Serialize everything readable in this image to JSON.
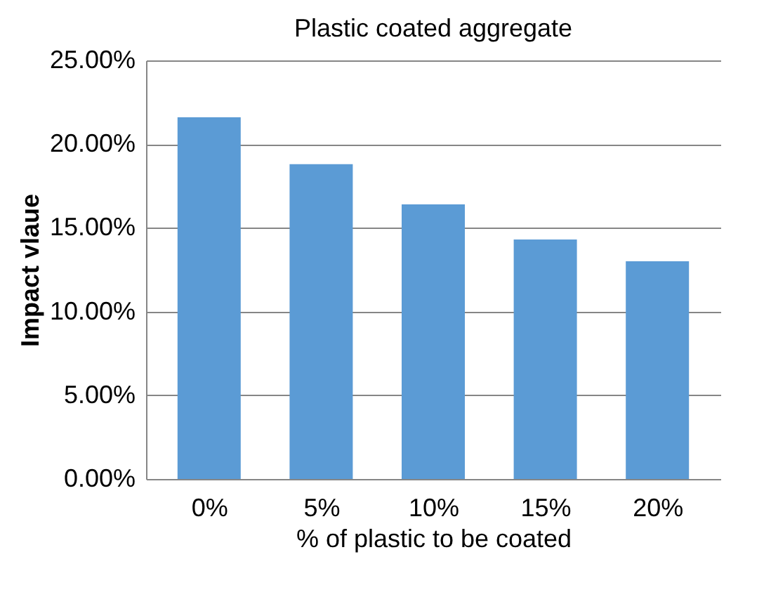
{
  "chart_data": {
    "type": "bar",
    "title": "Plastic coated aggregate",
    "xlabel": "% of plastic to be coated",
    "ylabel": "Impact vlaue",
    "categories": [
      "0%",
      "5%",
      "10%",
      "15%",
      "20%"
    ],
    "values": [
      21.6,
      18.8,
      16.4,
      14.3,
      13.0
    ],
    "color": "#5b9bd5",
    "ylim": [
      0,
      25
    ],
    "yticks": [
      {
        "value": 0,
        "label": "0.00%"
      },
      {
        "value": 5,
        "label": "5.00%"
      },
      {
        "value": 10,
        "label": "10.00%"
      },
      {
        "value": 15,
        "label": "15.00%"
      },
      {
        "value": 20,
        "label": "20.00%"
      },
      {
        "value": 25,
        "label": "25.00%"
      }
    ],
    "grid": "y"
  }
}
